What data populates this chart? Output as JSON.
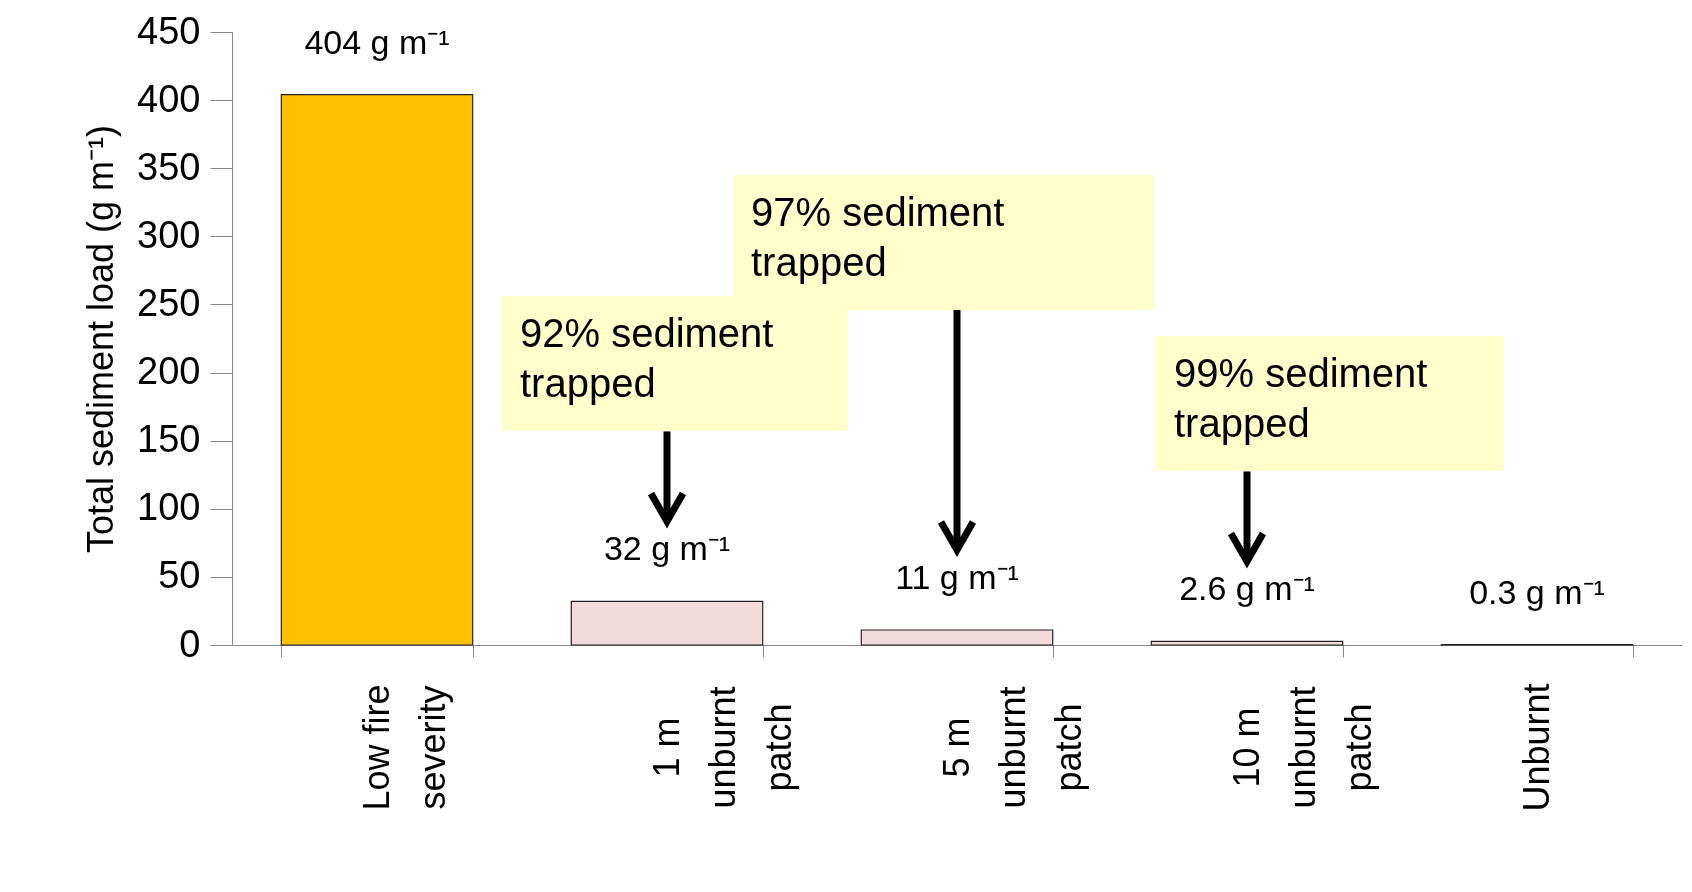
{
  "chart_data": {
    "type": "bar",
    "ylabel": "Total sediment load (g m⁻¹)",
    "categories": [
      "Low fire severity",
      "1 m unburnt patch",
      "5 m unburnt patch",
      "10 m unburnt patch",
      "Unburnt"
    ],
    "values": [
      404,
      32,
      11,
      2.6,
      0.3
    ],
    "colors": [
      "#ffc000",
      "#f2dcdb",
      "#f2dcdb",
      "#f2dcdb",
      "#2ca07a"
    ],
    "value_labels": [
      "404 g m⁻¹",
      "32 g m⁻¹",
      "11 g m⁻¹",
      "2.6 g m⁻¹",
      "0.3 g m⁻¹"
    ],
    "ylim": [
      0,
      450
    ],
    "yticks": [
      0,
      50,
      100,
      150,
      200,
      250,
      300,
      350,
      400,
      450
    ],
    "annotations": [
      "92% sediment trapped",
      "97% sediment trapped",
      "99% sediment trapped"
    ]
  }
}
